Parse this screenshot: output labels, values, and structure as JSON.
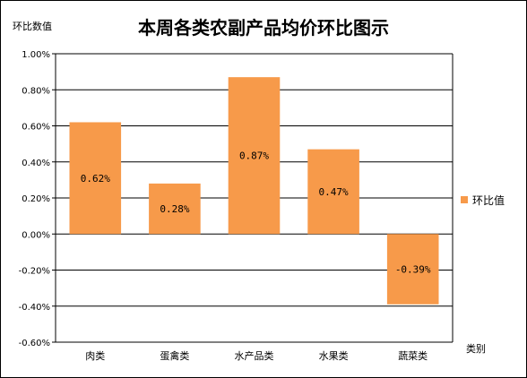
{
  "chart_data": {
    "type": "bar",
    "title": "本周各类农副产品均价环比图示",
    "ylabel": "环比数值",
    "xlabel": "类别",
    "categories": [
      "肉类",
      "蛋禽类",
      "水产品类",
      "水果类",
      "蔬菜类"
    ],
    "series": [
      {
        "name": "环比值",
        "values": [
          0.0062,
          0.0028,
          0.0087,
          0.0047,
          -0.0039
        ]
      }
    ],
    "data_labels": [
      "0.62%",
      "0.28%",
      "0.87%",
      "0.47%",
      "-0.39%"
    ],
    "ylim": [
      -0.006,
      0.01
    ],
    "yticks": [
      -0.006,
      -0.004,
      -0.002,
      0,
      0.002,
      0.004,
      0.006,
      0.008,
      0.01
    ],
    "ytick_labels": [
      "-0.60%",
      "-0.40%",
      "-0.20%",
      "0.00%",
      "0.20%",
      "0.40%",
      "0.60%",
      "0.80%",
      "1.00%"
    ],
    "grid": true,
    "legend": "right",
    "colors": {
      "bar": "#F79A4A",
      "grid": "#000000"
    }
  }
}
